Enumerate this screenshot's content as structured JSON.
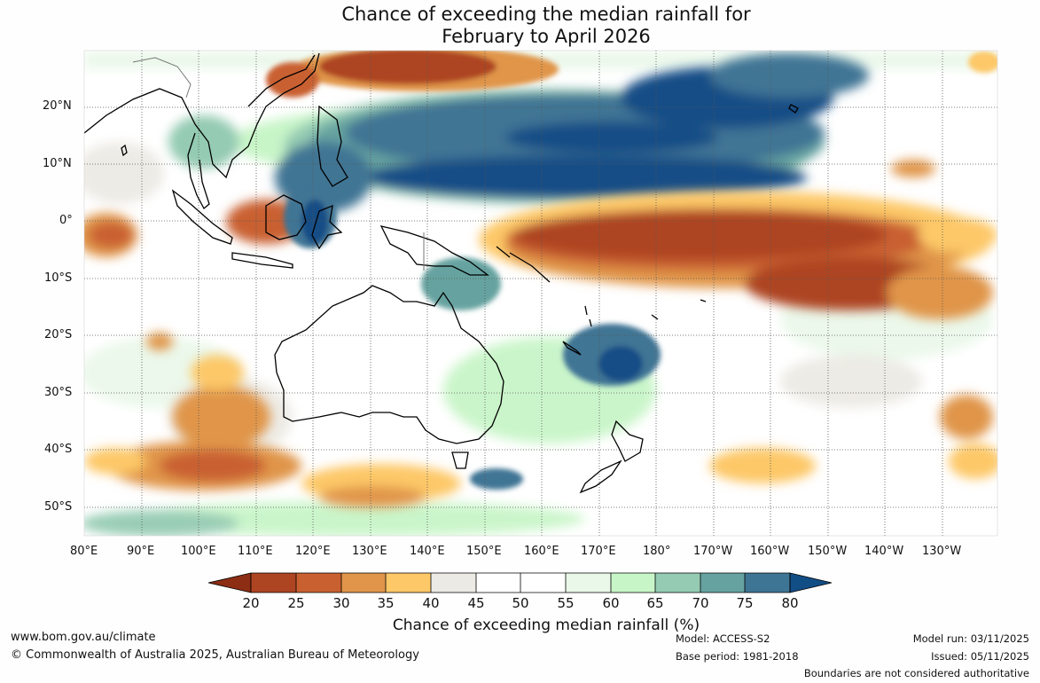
{
  "title": {
    "line1": "Chance of exceeding the median rainfall for",
    "line2": "February to April 2026"
  },
  "axes": {
    "lat_labels": [
      "20°N",
      "10°N",
      "0°",
      "10°S",
      "20°S",
      "30°S",
      "40°S",
      "50°S"
    ],
    "lon_labels": [
      "80°E",
      "90°E",
      "100°E",
      "110°E",
      "120°E",
      "130°E",
      "140°E",
      "150°E",
      "160°E",
      "170°E",
      "180°",
      "170°W",
      "160°W",
      "150°W",
      "140°W",
      "130°W"
    ]
  },
  "colorbar": {
    "title": "Chance of exceeding median rainfall (%)",
    "ticks": [
      "20",
      "25",
      "30",
      "35",
      "40",
      "45",
      "50",
      "55",
      "60",
      "65",
      "70",
      "75",
      "80"
    ],
    "bins": [
      {
        "range": "<20",
        "color": "#8c2d14"
      },
      {
        "range": "20-25",
        "color": "#ad4422"
      },
      {
        "range": "25-30",
        "color": "#c96030"
      },
      {
        "range": "30-35",
        "color": "#e0954a"
      },
      {
        "range": "35-40",
        "color": "#fdc868"
      },
      {
        "range": "40-45",
        "color": "#eceae4"
      },
      {
        "range": "45-50",
        "color": "#ffffff"
      },
      {
        "range": "50-55",
        "color": "#ffffff"
      },
      {
        "range": "55-60",
        "color": "#eaf8ea"
      },
      {
        "range": "60-65",
        "color": "#c8f5c8"
      },
      {
        "range": "65-70",
        "color": "#94cbb2"
      },
      {
        "range": "70-75",
        "color": "#66a3a0"
      },
      {
        "range": "75-80",
        "color": "#3f7594"
      },
      {
        "range": ">80",
        "color": "#124e86"
      }
    ]
  },
  "footer": {
    "website": "www.bom.gov.au/climate",
    "copyright": "© Commonwealth of Australia 2025, Australian Bureau of Meteorology",
    "model": "Model: ACCESS-S2",
    "base_period": "Base period: 1981-2018",
    "model_run": "Model run: 03/11/2025",
    "issued": "Issued: 05/11/2025",
    "disclaimer": "Boundaries are not considered authoritative"
  }
}
